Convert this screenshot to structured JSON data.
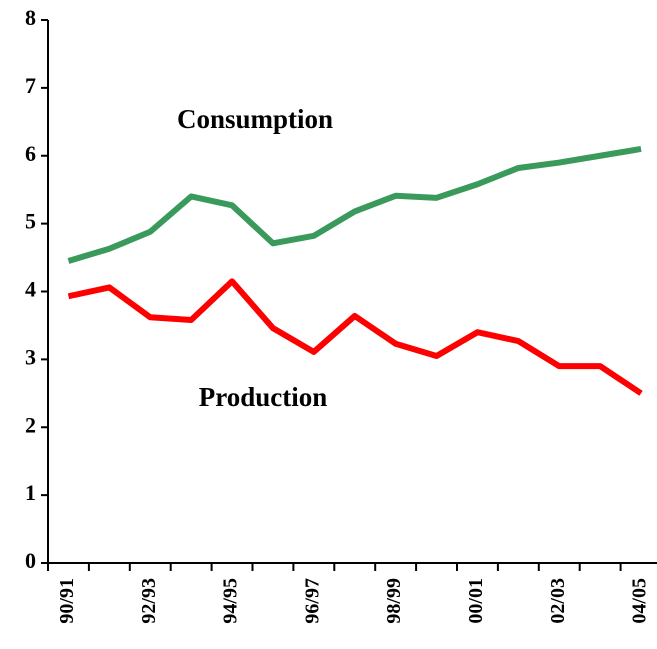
{
  "chart_data": {
    "type": "line",
    "categories": [
      "90/91",
      null,
      "92/93",
      null,
      "94/95",
      null,
      "96/97",
      null,
      "98/99",
      null,
      "00/01",
      null,
      "02/03",
      null,
      "04/05"
    ],
    "series": [
      {
        "name": "Consumption",
        "color": "#3a9a5c",
        "values": [
          4.45,
          4.63,
          4.88,
          5.4,
          5.27,
          4.71,
          4.82,
          5.18,
          5.41,
          5.38,
          5.58,
          5.82,
          5.9,
          6.0,
          6.1
        ]
      },
      {
        "name": "Production",
        "color": "#ff0000",
        "values": [
          3.93,
          4.06,
          3.62,
          3.58,
          4.15,
          3.46,
          3.11,
          3.64,
          3.23,
          3.05,
          3.4,
          3.27,
          2.9,
          2.9,
          2.5
        ]
      }
    ],
    "ylim": [
      0,
      8
    ],
    "yticks": [
      0,
      1,
      2,
      3,
      4,
      5,
      6,
      7,
      8
    ]
  }
}
